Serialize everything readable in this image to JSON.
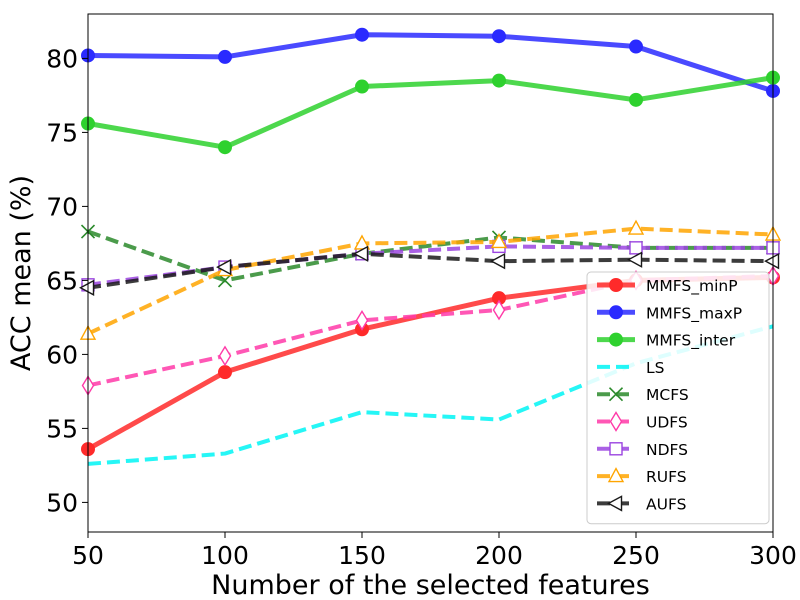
{
  "chart_data": {
    "type": "line",
    "title": "",
    "xlabel": "Number of the selected features",
    "ylabel": "ACC mean (%)",
    "x": [
      50,
      100,
      150,
      200,
      250,
      300
    ],
    "xlim": [
      50,
      300
    ],
    "ylim": [
      48,
      83
    ],
    "xticks": [
      "50",
      "100",
      "150",
      "200",
      "250",
      "300"
    ],
    "yticks": [
      "50",
      "55",
      "60",
      "65",
      "70",
      "75",
      "80"
    ],
    "grid": false,
    "legend_position": "lower-right",
    "series": [
      {
        "name": "MMFS_minP",
        "color": "#ff2a2a",
        "dash": "solid",
        "marker": "circle-filled",
        "values": [
          53.6,
          58.8,
          61.7,
          63.8,
          65.0,
          65.2
        ]
      },
      {
        "name": "MMFS_maxP",
        "color": "#2a2aff",
        "dash": "solid",
        "marker": "circle-filled",
        "values": [
          80.2,
          80.1,
          81.6,
          81.5,
          80.8,
          77.8
        ]
      },
      {
        "name": "MMFS_inter",
        "color": "#2ed12e",
        "dash": "solid",
        "marker": "circle-filled",
        "values": [
          75.6,
          74.0,
          78.1,
          78.5,
          77.2,
          78.7
        ]
      },
      {
        "name": "LS",
        "color": "#00f5f5",
        "dash": "dashed",
        "marker": "none",
        "values": [
          52.6,
          53.3,
          56.1,
          55.6,
          59.4,
          61.9
        ]
      },
      {
        "name": "MCFS",
        "color": "#2b8a2b",
        "dash": "dashed",
        "marker": "x",
        "values": [
          68.3,
          65.0,
          66.8,
          67.9,
          67.2,
          67.2
        ]
      },
      {
        "name": "UDFS",
        "color": "#ff3aa8",
        "dash": "dashed",
        "marker": "diamond-open",
        "values": [
          57.9,
          59.9,
          62.3,
          63.0,
          65.0,
          65.3
        ]
      },
      {
        "name": "NDFS",
        "color": "#9b45e0",
        "dash": "dashed",
        "marker": "square-open",
        "values": [
          64.7,
          65.9,
          66.8,
          67.3,
          67.2,
          67.2
        ]
      },
      {
        "name": "RUFS",
        "color": "#ffa500",
        "dash": "dashed",
        "marker": "triangle-up-open",
        "values": [
          61.4,
          65.7,
          67.5,
          67.6,
          68.5,
          68.1
        ]
      },
      {
        "name": "AUFS",
        "color": "#1a1a1a",
        "dash": "dashed",
        "marker": "triangle-left-open",
        "values": [
          64.5,
          65.9,
          66.8,
          66.3,
          66.4,
          66.3
        ]
      }
    ]
  }
}
